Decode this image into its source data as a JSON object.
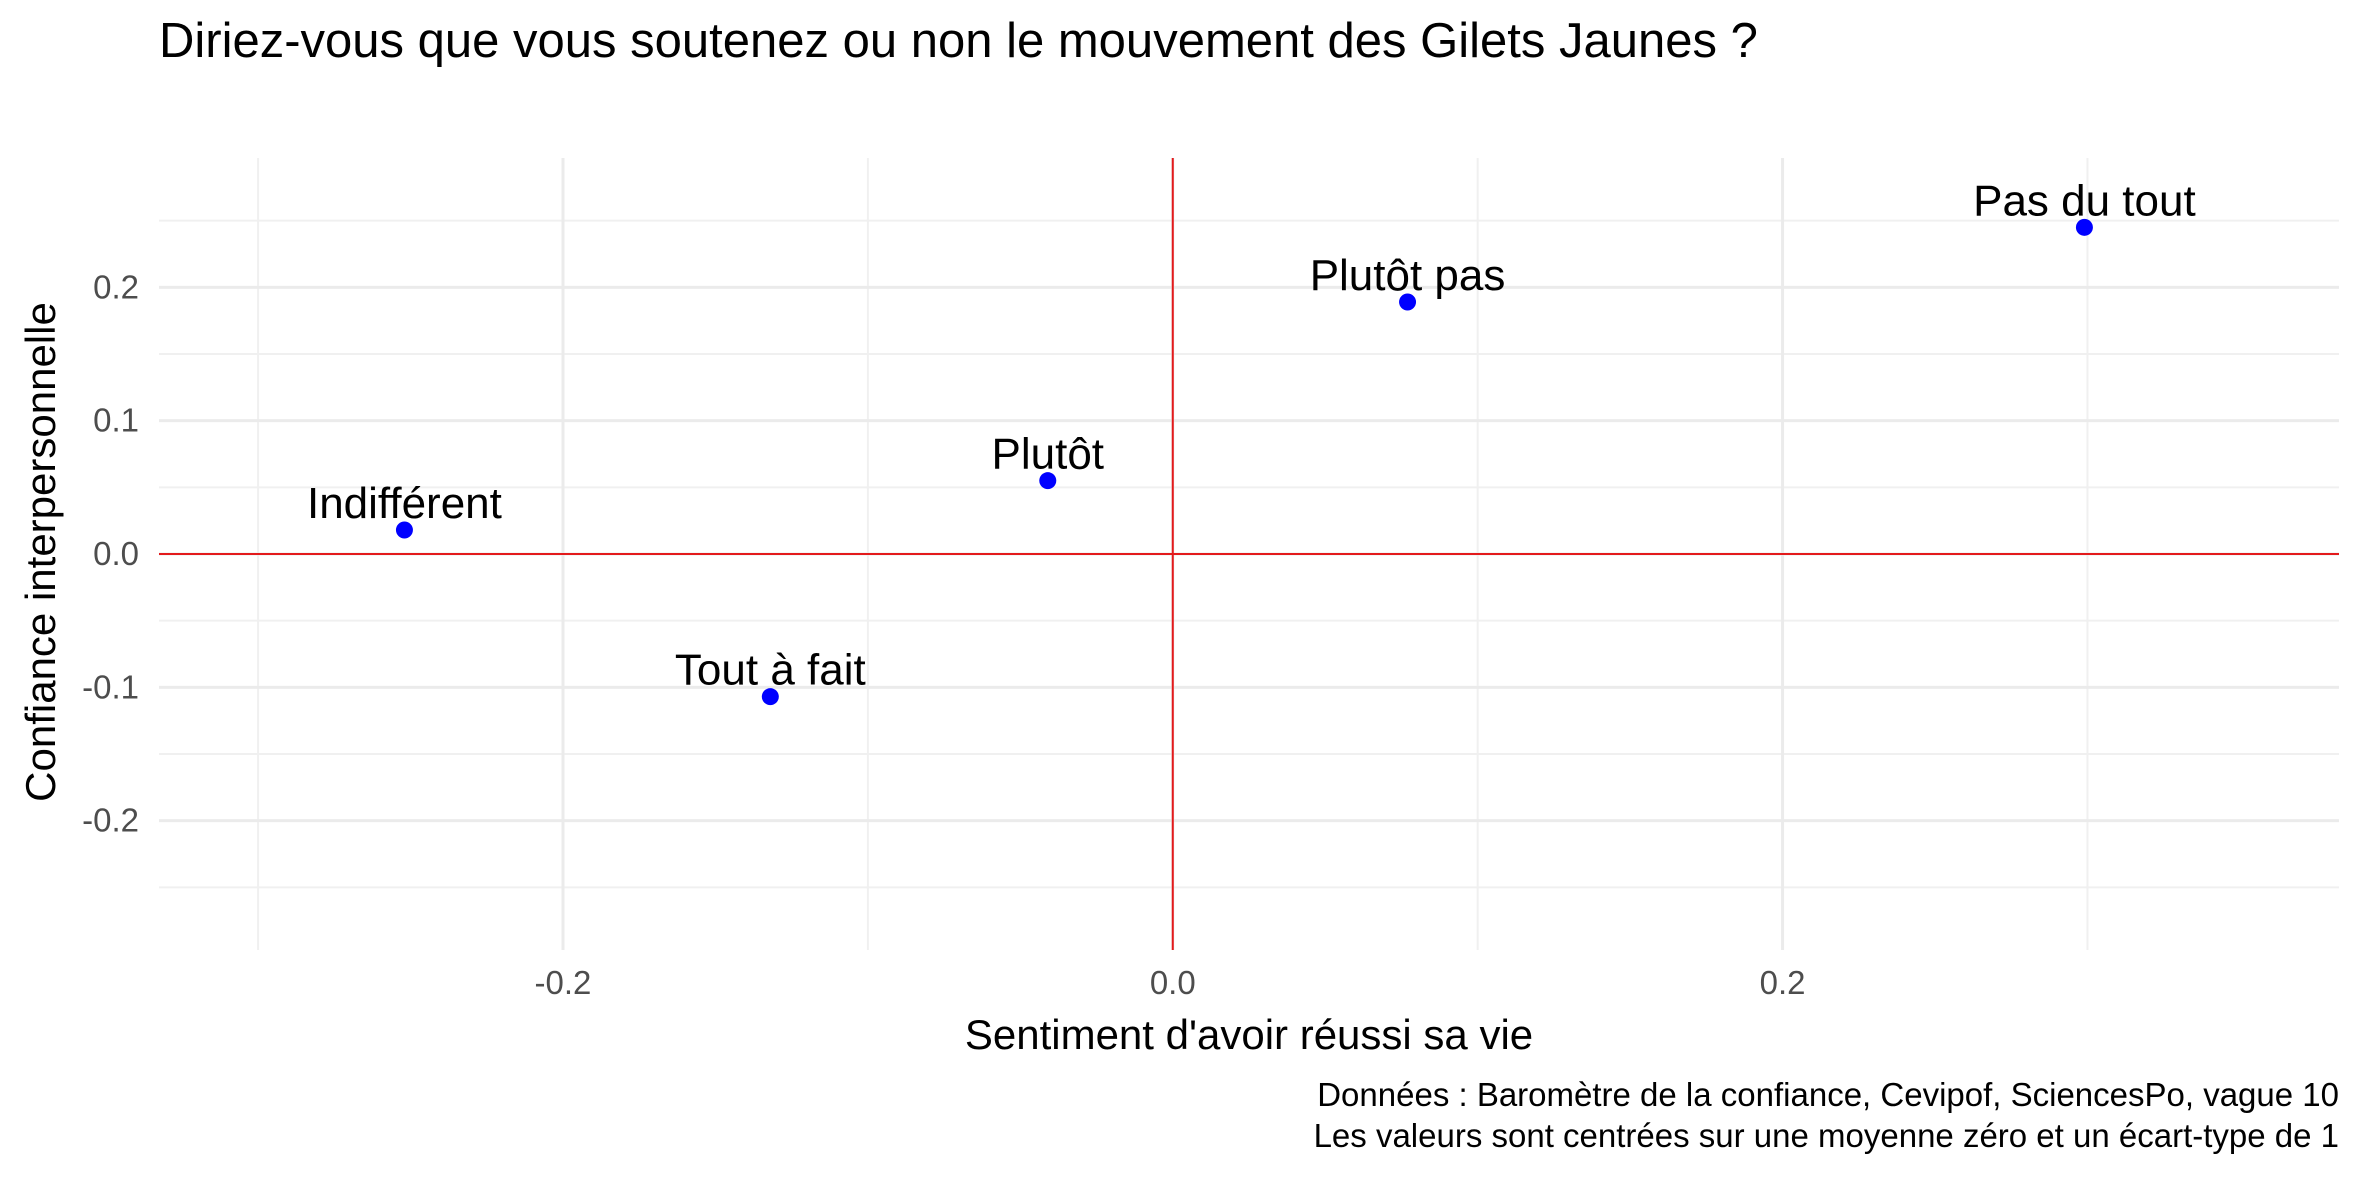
{
  "chart_data": {
    "type": "scatter",
    "title": "Diriez-vous que vous soutenez ou non le mouvement des Gilets Jaunes ?",
    "xlabel": "Sentiment d'avoir réussi sa vie",
    "ylabel": "Confiance interpersonnelle",
    "xlim": [
      -0.3325,
      0.3825
    ],
    "ylim": [
      -0.297,
      0.297
    ],
    "x_ticks": [
      -0.2,
      0.0,
      0.2
    ],
    "x_tick_labels": [
      "-0.2",
      "0.0",
      "0.2"
    ],
    "y_ticks": [
      -0.2,
      -0.1,
      0.0,
      0.1,
      0.2
    ],
    "y_tick_labels": [
      "-0.2",
      "-0.1",
      "0.0",
      "0.1",
      "0.2"
    ],
    "grid": true,
    "reference_lines": {
      "x": 0.0,
      "y": 0.0,
      "color": "#e31a1c"
    },
    "point_color": "#0000ff",
    "points": [
      {
        "label": "Pas du tout",
        "x": 0.299,
        "y": 0.245
      },
      {
        "label": "Plutôt pas",
        "x": 0.077,
        "y": 0.189
      },
      {
        "label": "Plutôt",
        "x": -0.041,
        "y": 0.055
      },
      {
        "label": "Indifférent",
        "x": -0.252,
        "y": 0.018
      },
      {
        "label": "Tout à fait",
        "x": -0.132,
        "y": -0.107
      }
    ],
    "caption": [
      "Données : Baromètre de la confiance, Cevipof, SciencesPo, vague 10",
      "Les valeurs sont centrées sur une moyenne zéro et un écart-type de 1"
    ]
  }
}
